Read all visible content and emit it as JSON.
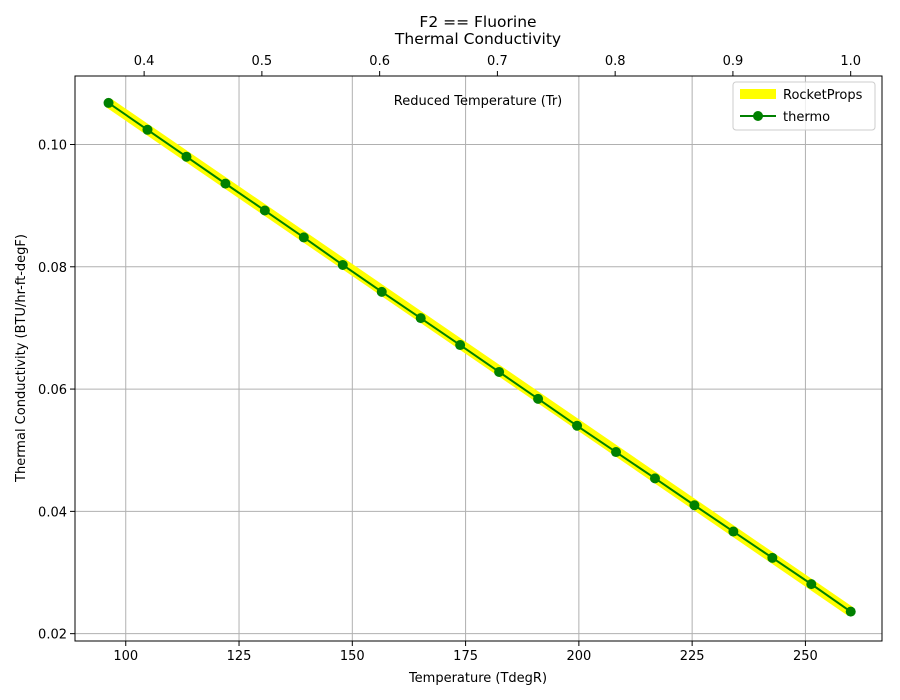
{
  "chart_data": {
    "type": "line",
    "title": "F2 == Fluorine",
    "subtitle": "Thermal Conductivity",
    "xlabel": "Temperature (TdegR)",
    "ylabel": "Thermal Conductivity (BTU/hr-ft-degF)",
    "top_xlabel": "Reduced Temperature (Tr)",
    "xlim": [
      88.8,
      266.9
    ],
    "ylim": [
      0.0188,
      0.1112
    ],
    "top_xlim": [
      0.3413,
      1.0266
    ],
    "x_ticks": [
      100,
      125,
      150,
      175,
      200,
      225,
      250
    ],
    "x_tick_labels": [
      "100",
      "125",
      "150",
      "175",
      "200",
      "225",
      "250"
    ],
    "y_ticks": [
      0.02,
      0.04,
      0.06,
      0.08,
      0.1
    ],
    "y_tick_labels": [
      "0.02",
      "0.04",
      "0.06",
      "0.08",
      "0.10"
    ],
    "top_x_ticks": [
      0.4,
      0.5,
      0.6,
      0.7,
      0.8,
      0.9,
      1.0
    ],
    "top_x_tick_labels": [
      "0.4",
      "0.5",
      "0.6",
      "0.7",
      "0.8",
      "0.9",
      "1.0"
    ],
    "grid": true,
    "legend_position": "top-right",
    "series": [
      {
        "name": "RocketProps",
        "color": "#ffff00",
        "style": "thick-line",
        "x": [
          96.2,
          260.0
        ],
        "y": [
          0.1068,
          0.0236
        ]
      },
      {
        "name": "thermo",
        "color": "#008000",
        "style": "line-with-markers",
        "x": [
          96.2,
          104.8,
          113.4,
          122.0,
          130.7,
          139.3,
          147.9,
          156.5,
          165.1,
          173.8,
          182.4,
          191.0,
          199.6,
          208.2,
          216.8,
          225.5,
          234.1,
          242.7,
          251.3,
          260.0
        ],
        "y": [
          0.1068,
          0.1024,
          0.098,
          0.0936,
          0.0892,
          0.0848,
          0.0803,
          0.0759,
          0.0716,
          0.0672,
          0.0628,
          0.0584,
          0.054,
          0.0497,
          0.0454,
          0.041,
          0.0367,
          0.0324,
          0.0281,
          0.0236
        ]
      }
    ]
  }
}
